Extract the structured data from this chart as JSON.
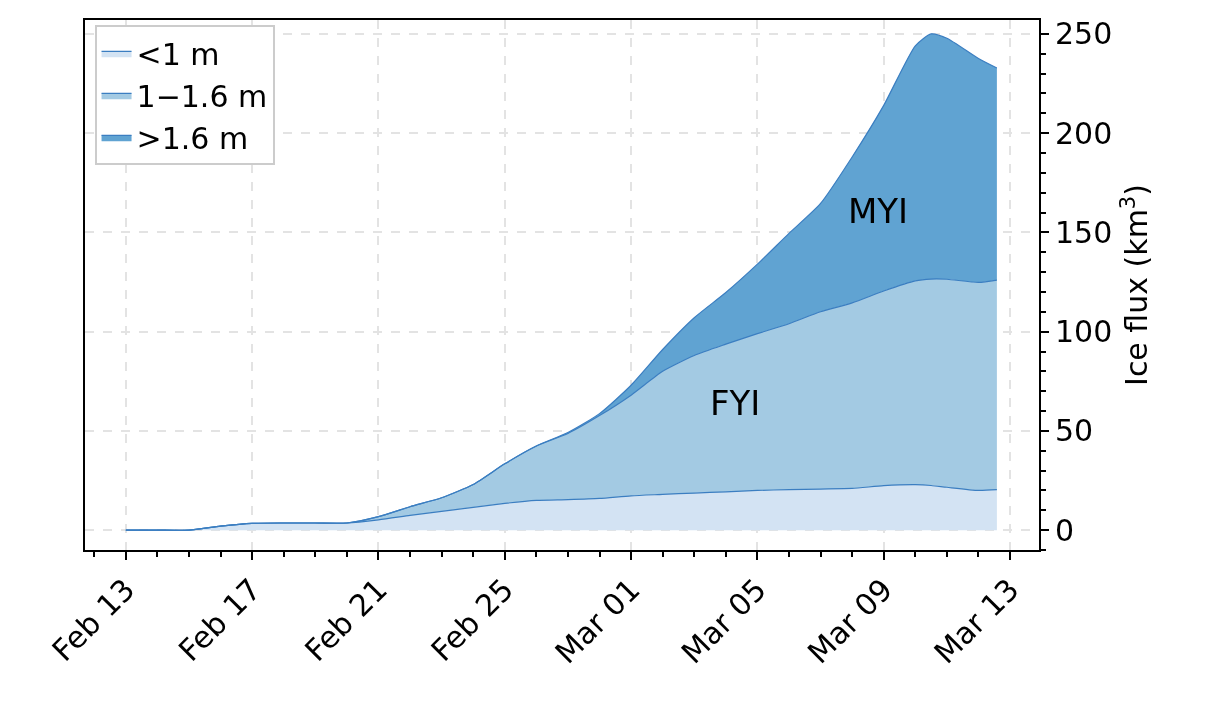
{
  "chart_data": {
    "type": "area",
    "stacked": true,
    "ylabel": "Ice flux (km$^{3}$)",
    "x": [
      "--02-13",
      "--02-14",
      "--02-15",
      "--02-16",
      "--02-17",
      "--02-18",
      "--02-19",
      "--02-20",
      "--02-21",
      "--02-22",
      "--02-23",
      "--02-24",
      "--02-25",
      "--02-26",
      "--02-27",
      "--02-28",
      "--03-01",
      "--03-02",
      "--03-03",
      "--03-04",
      "--03-05",
      "--03-06",
      "--03-07",
      "--03-08",
      "--03-09",
      "--03-10",
      "--03-10T12:00",
      "--03-11",
      "--03-12",
      "--03-12T14:00"
    ],
    "series": [
      {
        "name": "<1 m",
        "color": "#d3e3f3",
        "values": [
          0,
          0,
          0,
          2,
          3.4,
          3.6,
          3.6,
          3.6,
          5.2,
          7.4,
          9.5,
          11.5,
          13.5,
          15,
          15.4,
          16,
          17.3,
          18,
          18.7,
          19.3,
          20,
          20.4,
          20.7,
          21,
          22.4,
          22.9,
          22.5,
          21.6,
          20,
          20.4
        ]
      },
      {
        "name": "1−1.6 m",
        "color": "#a3cae3",
        "values": [
          0,
          0,
          0,
          0,
          0,
          0,
          0,
          0,
          1.6,
          4.4,
          6.8,
          11.5,
          19.9,
          27.4,
          33.3,
          41.7,
          50.7,
          62,
          69.3,
          74.4,
          79,
          83.6,
          89.3,
          93.5,
          98.1,
          102.7,
          104,
          104.8,
          104.8,
          105.6
        ]
      },
      {
        "name": ">1.6 m",
        "color": "#60a3d2",
        "values": [
          0,
          0,
          0,
          0,
          0,
          0,
          0,
          0,
          0,
          0,
          0,
          0,
          0,
          0,
          0.5,
          1,
          5,
          11,
          19,
          26,
          35,
          45.5,
          54.6,
          73.5,
          93.5,
          118.4,
          123.5,
          121.4,
          112.8,
          106.8
        ]
      }
    ],
    "xlim": [
      "--02-11T17:00",
      "--03-13T22:00"
    ],
    "xticks": [
      {
        "value": "--02-13",
        "label": "Feb 13"
      },
      {
        "value": "--02-17",
        "label": "Feb 17"
      },
      {
        "value": "--02-21",
        "label": "Feb 21"
      },
      {
        "value": "--02-25",
        "label": "Feb 25"
      },
      {
        "value": "--03-01",
        "label": "Mar 01"
      },
      {
        "value": "--03-05",
        "label": "Mar 05"
      },
      {
        "value": "--03-09",
        "label": "Mar 09"
      },
      {
        "value": "--03-13",
        "label": "Mar 13"
      }
    ],
    "ylim": [
      -10,
      257
    ],
    "yticks": [
      0,
      50,
      100,
      150,
      200,
      250
    ],
    "grid": true,
    "legend": "top left",
    "annotations": [
      "FYI",
      "MYI"
    ]
  }
}
